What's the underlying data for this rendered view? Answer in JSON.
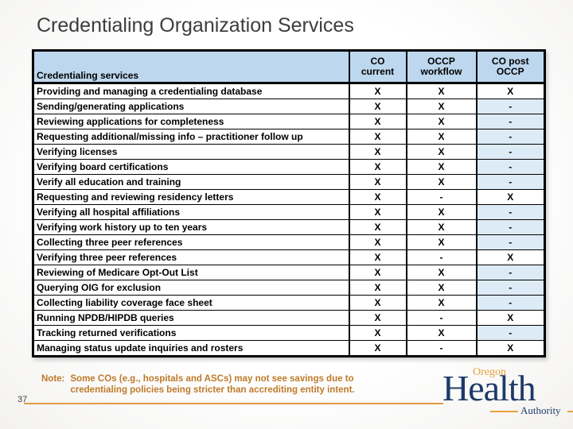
{
  "slide": {
    "title": "Credentialing Organization Services",
    "page_number": "37"
  },
  "table": {
    "headers": [
      "Credentialing services",
      "CO\ncurrent",
      "OCCP\nworkflow",
      "CO post\nOCCP"
    ],
    "rows": [
      [
        "Providing and managing a credentialing database",
        "X",
        "X",
        "X"
      ],
      [
        "Sending/generating applications",
        "X",
        "X",
        "-"
      ],
      [
        "Reviewing applications for completeness",
        "X",
        "X",
        "-"
      ],
      [
        "Requesting additional/missing info – practitioner follow up",
        "X",
        "X",
        "-"
      ],
      [
        "Verifying licenses",
        "X",
        "X",
        "-"
      ],
      [
        "Verifying board certifications",
        "X",
        "X",
        "-"
      ],
      [
        "Verify all education and training",
        "X",
        "X",
        "-"
      ],
      [
        "Requesting and reviewing residency letters",
        "X",
        "-",
        "X"
      ],
      [
        "Verifying all hospital affiliations",
        "X",
        "X",
        "-"
      ],
      [
        "Verifying work history up to ten years",
        "X",
        "X",
        "-"
      ],
      [
        "Collecting three peer references",
        "X",
        "X",
        "-"
      ],
      [
        "Verifying three peer references",
        "X",
        "-",
        "X"
      ],
      [
        "Reviewing of Medicare Opt-Out List",
        "X",
        "X",
        "-"
      ],
      [
        "Querying OIG for exclusion",
        "X",
        "X",
        "-"
      ],
      [
        "Collecting liability coverage face sheet",
        "X",
        "X",
        "-"
      ],
      [
        "Running NPDB/HIPDB queries",
        "X",
        "-",
        "X"
      ],
      [
        "Tracking returned verifications",
        "X",
        "X",
        "-"
      ],
      [
        "Managing status update inquiries and rosters",
        "X",
        "-",
        "X"
      ]
    ]
  },
  "note": {
    "label": "Note:",
    "text": "Some COs (e.g., hospitals and ASCs) may not see savings due to credentialing policies being stricter than accrediting entity intent."
  },
  "logo": {
    "oregon": "Oregon",
    "health": "Health",
    "authority": "Authority"
  },
  "colors": {
    "header_blue": "#BDD7EE",
    "cell_blue": "#DDEBF7",
    "note_orange": "#BE7A28",
    "line_orange": "#E09B41",
    "logo_navy": "#1E3A68",
    "logo_orange": "#E8A23C"
  }
}
